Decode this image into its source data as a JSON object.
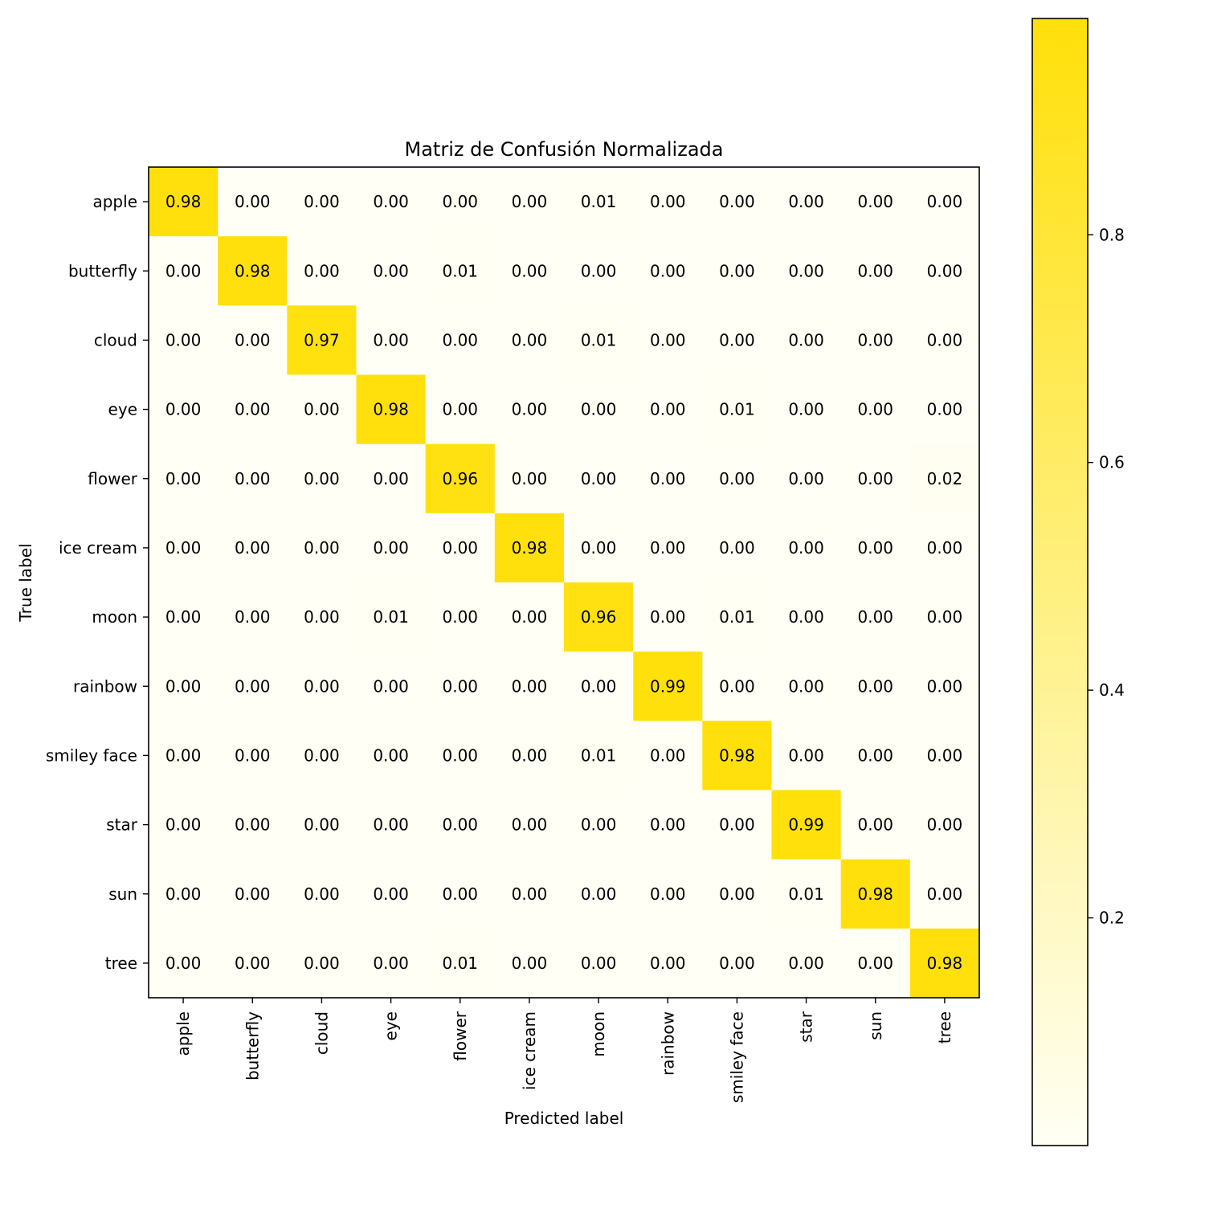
{
  "chart_data": {
    "type": "heatmap",
    "title": "Matriz de Confusión Normalizada",
    "xlabel": "Predicted label",
    "ylabel": "True label",
    "x_categories": [
      "apple",
      "butterfly",
      "cloud",
      "eye",
      "flower",
      "ice cream",
      "moon",
      "rainbow",
      "smiley face",
      "star",
      "sun",
      "tree"
    ],
    "y_categories": [
      "apple",
      "butterfly",
      "cloud",
      "eye",
      "flower",
      "ice cream",
      "moon",
      "rainbow",
      "smiley face",
      "star",
      "sun",
      "tree"
    ],
    "values": [
      [
        0.98,
        0.0,
        0.0,
        0.0,
        0.0,
        0.0,
        0.01,
        0.0,
        0.0,
        0.0,
        0.0,
        0.0
      ],
      [
        0.0,
        0.98,
        0.0,
        0.0,
        0.01,
        0.0,
        0.0,
        0.0,
        0.0,
        0.0,
        0.0,
        0.0
      ],
      [
        0.0,
        0.0,
        0.97,
        0.0,
        0.0,
        0.0,
        0.01,
        0.0,
        0.0,
        0.0,
        0.0,
        0.0
      ],
      [
        0.0,
        0.0,
        0.0,
        0.98,
        0.0,
        0.0,
        0.0,
        0.0,
        0.01,
        0.0,
        0.0,
        0.0
      ],
      [
        0.0,
        0.0,
        0.0,
        0.0,
        0.96,
        0.0,
        0.0,
        0.0,
        0.0,
        0.0,
        0.0,
        0.02
      ],
      [
        0.0,
        0.0,
        0.0,
        0.0,
        0.0,
        0.98,
        0.0,
        0.0,
        0.0,
        0.0,
        0.0,
        0.0
      ],
      [
        0.0,
        0.0,
        0.0,
        0.01,
        0.0,
        0.0,
        0.96,
        0.0,
        0.01,
        0.0,
        0.0,
        0.0
      ],
      [
        0.0,
        0.0,
        0.0,
        0.0,
        0.0,
        0.0,
        0.0,
        0.99,
        0.0,
        0.0,
        0.0,
        0.0
      ],
      [
        0.0,
        0.0,
        0.0,
        0.0,
        0.0,
        0.0,
        0.01,
        0.0,
        0.98,
        0.0,
        0.0,
        0.0
      ],
      [
        0.0,
        0.0,
        0.0,
        0.0,
        0.0,
        0.0,
        0.0,
        0.0,
        0.0,
        0.99,
        0.0,
        0.0
      ],
      [
        0.0,
        0.0,
        0.0,
        0.0,
        0.0,
        0.0,
        0.0,
        0.0,
        0.0,
        0.01,
        0.98,
        0.0
      ],
      [
        0.0,
        0.0,
        0.0,
        0.0,
        0.01,
        0.0,
        0.0,
        0.0,
        0.0,
        0.0,
        0.0,
        0.98
      ]
    ],
    "colormap": {
      "low": "#fffff5",
      "high": "#ffe00a"
    },
    "colorbar": {
      "range": [
        0.0,
        0.99
      ],
      "ticks": [
        0.2,
        0.4,
        0.6,
        0.8
      ],
      "tick_labels": [
        "0.2",
        "0.4",
        "0.6",
        "0.8"
      ]
    }
  }
}
